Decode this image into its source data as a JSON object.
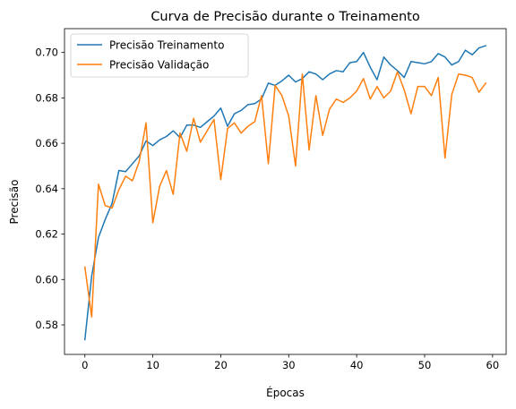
{
  "chart_data": {
    "type": "line",
    "title": "Curva de Precisão durante o Treinamento",
    "xlabel": "Épocas",
    "ylabel": "Precisão",
    "xlim": [
      -3,
      62
    ],
    "ylim": [
      0.567,
      0.7105
    ],
    "xticks": [
      0,
      10,
      20,
      30,
      40,
      50,
      60
    ],
    "yticks": [
      0.58,
      0.6,
      0.62,
      0.64,
      0.66,
      0.68,
      0.7
    ],
    "xtick_labels": [
      "0",
      "10",
      "20",
      "30",
      "40",
      "50",
      "60"
    ],
    "ytick_labels": [
      "0.58",
      "0.60",
      "0.62",
      "0.64",
      "0.66",
      "0.68",
      "0.70"
    ],
    "legend_position": "upper left",
    "grid": false,
    "x": [
      0,
      1,
      2,
      3,
      4,
      5,
      6,
      7,
      8,
      9,
      10,
      11,
      12,
      13,
      14,
      15,
      16,
      17,
      18,
      19,
      20,
      21,
      22,
      23,
      24,
      25,
      26,
      27,
      28,
      29,
      30,
      31,
      32,
      33,
      34,
      35,
      36,
      37,
      38,
      39,
      40,
      41,
      42,
      43,
      44,
      45,
      46,
      47,
      48,
      49,
      50,
      51,
      52,
      53,
      54,
      55,
      56,
      57,
      58,
      59
    ],
    "series": [
      {
        "name": "Precisão Treinamento",
        "color": "#1f77b4",
        "values": [
          0.5735,
          0.6015,
          0.6185,
          0.6265,
          0.6335,
          0.648,
          0.6475,
          0.651,
          0.6545,
          0.661,
          0.659,
          0.6615,
          0.663,
          0.6655,
          0.6625,
          0.668,
          0.668,
          0.667,
          0.6695,
          0.672,
          0.6755,
          0.6675,
          0.673,
          0.6745,
          0.677,
          0.6775,
          0.6795,
          0.6865,
          0.6855,
          0.6875,
          0.69,
          0.687,
          0.6885,
          0.6915,
          0.6905,
          0.688,
          0.6905,
          0.692,
          0.6915,
          0.6955,
          0.696,
          0.7,
          0.6935,
          0.688,
          0.698,
          0.6945,
          0.692,
          0.689,
          0.696,
          0.6955,
          0.695,
          0.696,
          0.6995,
          0.698,
          0.6945,
          0.696,
          0.701,
          0.699,
          0.702,
          0.703
        ]
      },
      {
        "name": "Precisão Validação",
        "color": "#ff7f0e",
        "values": [
          0.6055,
          0.5835,
          0.642,
          0.6325,
          0.6315,
          0.6395,
          0.6455,
          0.6435,
          0.652,
          0.669,
          0.625,
          0.641,
          0.648,
          0.6375,
          0.6645,
          0.6565,
          0.671,
          0.6605,
          0.6655,
          0.6705,
          0.644,
          0.6665,
          0.669,
          0.6645,
          0.6675,
          0.6695,
          0.681,
          0.651,
          0.6855,
          0.681,
          0.672,
          0.65,
          0.6905,
          0.657,
          0.681,
          0.6635,
          0.675,
          0.6795,
          0.678,
          0.68,
          0.683,
          0.6885,
          0.6795,
          0.685,
          0.68,
          0.683,
          0.6915,
          0.6835,
          0.673,
          0.685,
          0.685,
          0.681,
          0.689,
          0.6535,
          0.6815,
          0.6905,
          0.69,
          0.689,
          0.6825,
          0.6865
        ]
      }
    ]
  }
}
